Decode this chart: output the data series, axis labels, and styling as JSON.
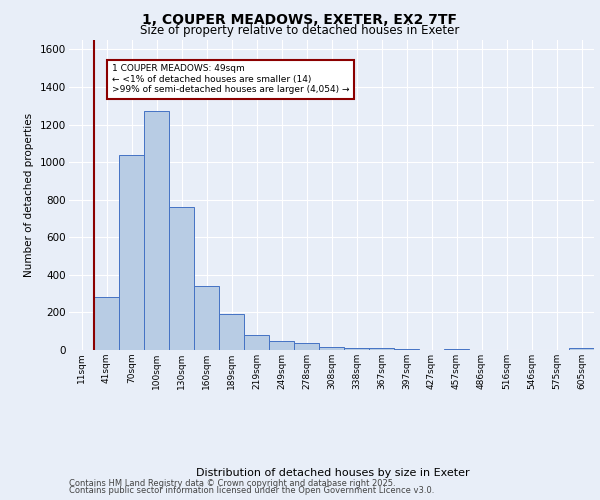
{
  "title_line1": "1, COUPER MEADOWS, EXETER, EX2 7TF",
  "title_line2": "Size of property relative to detached houses in Exeter",
  "xlabel": "Distribution of detached houses by size in Exeter",
  "ylabel": "Number of detached properties",
  "categories": [
    "11sqm",
    "41sqm",
    "70sqm",
    "100sqm",
    "130sqm",
    "160sqm",
    "189sqm",
    "219sqm",
    "249sqm",
    "278sqm",
    "308sqm",
    "338sqm",
    "367sqm",
    "397sqm",
    "427sqm",
    "457sqm",
    "486sqm",
    "516sqm",
    "546sqm",
    "575sqm",
    "605sqm"
  ],
  "values": [
    2,
    280,
    1040,
    1270,
    760,
    340,
    190,
    80,
    50,
    35,
    15,
    8,
    12,
    5,
    2,
    5,
    0,
    1,
    0,
    0,
    8
  ],
  "bar_color": "#b8cce4",
  "bar_edge_color": "#4472c4",
  "vline_color": "#8b0000",
  "annotation_text": "1 COUPER MEADOWS: 49sqm\n← <1% of detached houses are smaller (14)\n>99% of semi-detached houses are larger (4,054) →",
  "annotation_box_color": "#ffffff",
  "annotation_border_color": "#8b0000",
  "ylim": [
    0,
    1650
  ],
  "yticks": [
    0,
    200,
    400,
    600,
    800,
    1000,
    1200,
    1400,
    1600
  ],
  "bg_color": "#e8eef8",
  "plot_bg_color": "#e8eef8",
  "grid_color": "#ffffff",
  "footer_line1": "Contains HM Land Registry data © Crown copyright and database right 2025.",
  "footer_line2": "Contains public sector information licensed under the Open Government Licence v3.0."
}
